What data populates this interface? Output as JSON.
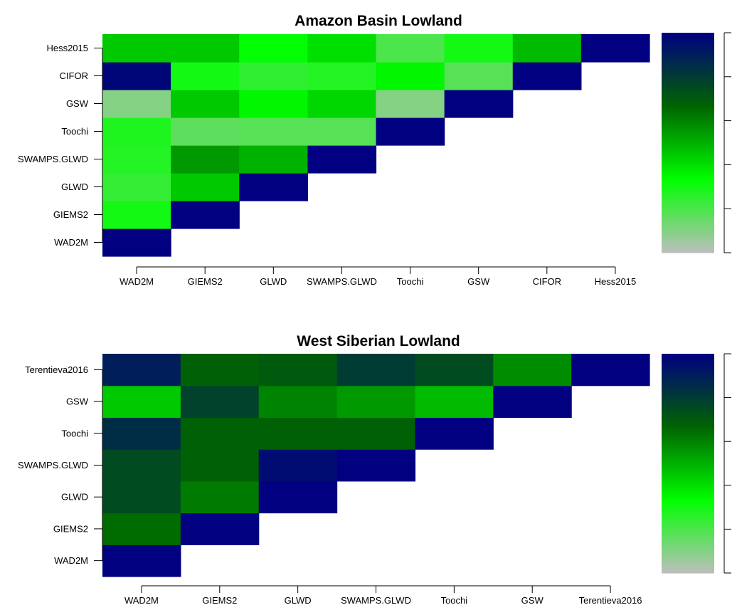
{
  "chart_data": [
    {
      "type": "heatmap",
      "title": "Amazon Basin Lowland",
      "categories": [
        "WAD2M",
        "GIEMS2",
        "GLWD",
        "SWAMPS.GLWD",
        "Toochi",
        "GSW",
        "CIFOR",
        "Hess2015"
      ],
      "matrix": [
        [
          1.0,
          null,
          null,
          null,
          null,
          null,
          null,
          null
        ],
        [
          0.3,
          1.0,
          null,
          null,
          null,
          null,
          null,
          null
        ],
        [
          0.24,
          0.45,
          1.0,
          null,
          null,
          null,
          null,
          null
        ],
        [
          0.27,
          0.55,
          0.5,
          1.0,
          null,
          null,
          null,
          null
        ],
        [
          0.28,
          0.17,
          0.18,
          0.18,
          1.0,
          null,
          null,
          null
        ],
        [
          0.1,
          0.45,
          0.35,
          0.42,
          0.1,
          1.0,
          null,
          null
        ],
        [
          0.98,
          0.3,
          0.25,
          0.27,
          0.35,
          0.18,
          1.0,
          null
        ],
        [
          0.45,
          0.45,
          0.33,
          0.4,
          0.2,
          0.3,
          0.48,
          1.0
        ]
      ],
      "colorbar": {
        "min": 0,
        "max": 1,
        "ticks": [
          "0",
          "0.2",
          "0.4",
          "0.6",
          "0.8",
          "1"
        ]
      },
      "colors": [
        "#bebebe",
        "#00ff00",
        "#006400",
        "#000080"
      ]
    },
    {
      "type": "heatmap",
      "title": "West Siberian Lowland",
      "categories": [
        "WAD2M",
        "GIEMS2",
        "GLWD",
        "SWAMPS.GLWD",
        "Toochi",
        "GSW",
        "Terentieva2016"
      ],
      "matrix": [
        [
          1.0,
          null,
          null,
          null,
          null,
          null,
          null
        ],
        [
          0.65,
          1.0,
          null,
          null,
          null,
          null,
          null
        ],
        [
          0.75,
          0.62,
          1.0,
          null,
          null,
          null,
          null
        ],
        [
          0.75,
          0.68,
          0.96,
          1.0,
          null,
          null,
          null
        ],
        [
          0.85,
          0.68,
          0.68,
          0.68,
          1.0,
          null,
          null
        ],
        [
          0.45,
          0.78,
          0.6,
          0.55,
          0.48,
          1.0,
          null
        ],
        [
          0.9,
          0.68,
          0.7,
          0.8,
          0.75,
          0.58,
          1.0
        ]
      ],
      "colorbar": {
        "min": 0,
        "max": 1,
        "ticks": [
          "0",
          "0.2",
          "0.4",
          "0.6",
          "0.8",
          "1"
        ]
      },
      "colors": [
        "#bebebe",
        "#00ff00",
        "#006400",
        "#000080"
      ]
    }
  ]
}
